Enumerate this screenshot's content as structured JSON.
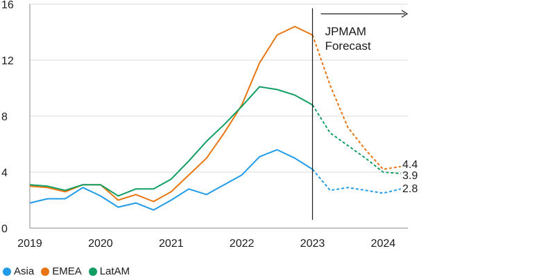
{
  "chart_data": {
    "type": "line",
    "title": "",
    "xlabel": "",
    "ylabel": "",
    "ylim": [
      0,
      16
    ],
    "yticks": [
      0,
      4,
      8,
      12,
      16
    ],
    "xlim": [
      2019,
      2024.35
    ],
    "xticks": [
      2019,
      2020,
      2021,
      2022,
      2023,
      2024
    ],
    "grid": "horizontal",
    "legend_position": "bottom-left",
    "forecast_start": 2023,
    "forecast_label": "JPMAM\nForecast",
    "forecast_label_lines": [
      "JPMAM",
      "Forecast"
    ],
    "x": [
      2019.0,
      2019.25,
      2019.5,
      2019.75,
      2020.0,
      2020.25,
      2020.5,
      2020.75,
      2021.0,
      2021.25,
      2021.5,
      2021.75,
      2022.0,
      2022.25,
      2022.5,
      2022.75,
      2023.0,
      2023.25,
      2023.5,
      2023.75,
      2024.0,
      2024.25
    ],
    "series": [
      {
        "name": "Asia",
        "color": "#1f9be8",
        "values": [
          1.8,
          2.1,
          2.1,
          2.9,
          2.3,
          1.5,
          1.8,
          1.3,
          2.0,
          2.8,
          2.4,
          3.1,
          3.8,
          5.1,
          5.6,
          5.0,
          4.2,
          2.7,
          2.9,
          2.7,
          2.5,
          2.8
        ],
        "end_label": "2.8"
      },
      {
        "name": "EMEA",
        "color": "#e8750f",
        "values": [
          3.0,
          2.9,
          2.6,
          3.1,
          3.1,
          2.0,
          2.4,
          1.9,
          2.6,
          3.8,
          5.0,
          6.8,
          8.8,
          11.8,
          13.8,
          14.4,
          13.8,
          10.2,
          7.2,
          5.6,
          4.2,
          4.4
        ],
        "end_label": "4.4"
      },
      {
        "name": "LatAM",
        "color": "#109e62",
        "values": [
          3.1,
          3.0,
          2.7,
          3.1,
          3.1,
          2.3,
          2.8,
          2.8,
          3.5,
          4.8,
          6.2,
          7.4,
          8.7,
          10.1,
          9.9,
          9.5,
          8.8,
          6.8,
          5.9,
          5.0,
          4.0,
          3.9
        ],
        "end_label": "3.9"
      }
    ]
  }
}
